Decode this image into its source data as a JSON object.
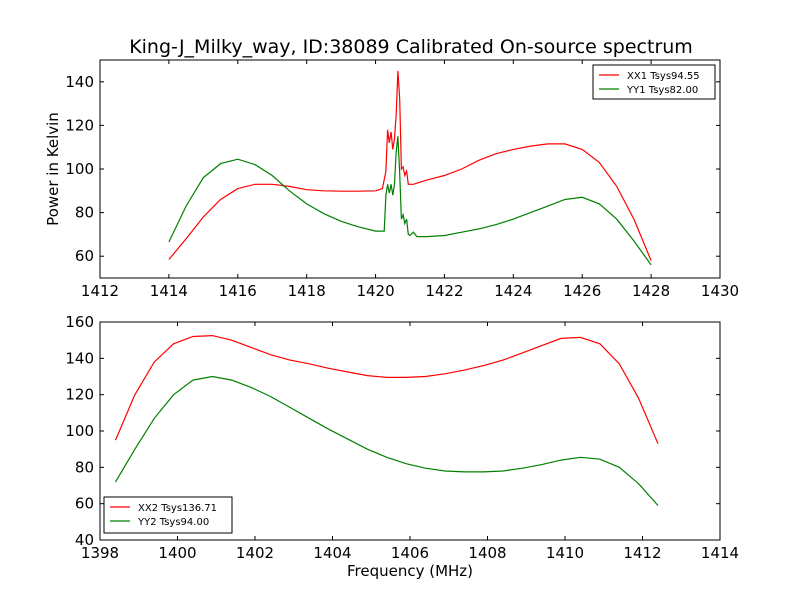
{
  "title": "King-J_Milky_way, ID:38089 Calibrated On-source spectrum",
  "chart_data": [
    {
      "type": "line",
      "xlabel": "",
      "ylabel": "Power in Kelvin",
      "xlim": [
        1412,
        1430
      ],
      "ylim": [
        50,
        150
      ],
      "xticks": [
        1412,
        1414,
        1416,
        1418,
        1420,
        1422,
        1424,
        1426,
        1428,
        1430
      ],
      "yticks": [
        60,
        80,
        100,
        120,
        140
      ],
      "legend_position": "top-right",
      "series": [
        {
          "name": "XX1 Tsys94.55",
          "color": "#ff0000",
          "points": [
            [
              1414.0,
              58.5
            ],
            [
              1414.5,
              68
            ],
            [
              1415.0,
              78
            ],
            [
              1415.5,
              86
            ],
            [
              1416.0,
              91
            ],
            [
              1416.5,
              93
            ],
            [
              1417.0,
              93
            ],
            [
              1417.5,
              92
            ],
            [
              1418.0,
              90.5
            ],
            [
              1418.5,
              90
            ],
            [
              1419.0,
              89.8
            ],
            [
              1419.5,
              89.8
            ],
            [
              1420.0,
              90
            ],
            [
              1420.2,
              91
            ],
            [
              1420.3,
              99
            ],
            [
              1420.35,
              118
            ],
            [
              1420.4,
              112
            ],
            [
              1420.45,
              117
            ],
            [
              1420.5,
              109
            ],
            [
              1420.55,
              114
            ],
            [
              1420.6,
              125
            ],
            [
              1420.65,
              145
            ],
            [
              1420.7,
              132
            ],
            [
              1420.75,
              100
            ],
            [
              1420.8,
              101
            ],
            [
              1420.85,
              97
            ],
            [
              1420.9,
              99
            ],
            [
              1420.95,
              93
            ],
            [
              1421.1,
              93
            ],
            [
              1421.3,
              94
            ],
            [
              1421.5,
              95
            ],
            [
              1422.0,
              97
            ],
            [
              1422.5,
              100
            ],
            [
              1423.0,
              104
            ],
            [
              1423.5,
              107
            ],
            [
              1424.0,
              109
            ],
            [
              1424.5,
              110.5
            ],
            [
              1425.0,
              111.5
            ],
            [
              1425.5,
              111.5
            ],
            [
              1426.0,
              109
            ],
            [
              1426.5,
              103
            ],
            [
              1427.0,
              92
            ],
            [
              1427.5,
              77
            ],
            [
              1428.0,
              58
            ]
          ]
        },
        {
          "name": "YY1 Tsys82.00",
          "color": "#008000",
          "points": [
            [
              1414.0,
              66.5
            ],
            [
              1414.5,
              83
            ],
            [
              1415.0,
              96
            ],
            [
              1415.5,
              102.5
            ],
            [
              1416.0,
              104.5
            ],
            [
              1416.5,
              102
            ],
            [
              1417.0,
              97
            ],
            [
              1417.5,
              90
            ],
            [
              1418.0,
              84
            ],
            [
              1418.5,
              79.5
            ],
            [
              1419.0,
              76
            ],
            [
              1419.5,
              73.5
            ],
            [
              1420.0,
              71.5
            ],
            [
              1420.25,
              71.5
            ],
            [
              1420.3,
              88
            ],
            [
              1420.35,
              93
            ],
            [
              1420.4,
              89
            ],
            [
              1420.45,
              93
            ],
            [
              1420.5,
              88
            ],
            [
              1420.55,
              93
            ],
            [
              1420.6,
              108
            ],
            [
              1420.65,
              115
            ],
            [
              1420.7,
              98
            ],
            [
              1420.75,
              77
            ],
            [
              1420.8,
              79
            ],
            [
              1420.85,
              75
            ],
            [
              1420.9,
              77
            ],
            [
              1420.95,
              70
            ],
            [
              1421.0,
              69.5
            ],
            [
              1421.1,
              71
            ],
            [
              1421.2,
              69
            ],
            [
              1421.5,
              69
            ],
            [
              1422.0,
              69.5
            ],
            [
              1422.5,
              71
            ],
            [
              1423.0,
              72.5
            ],
            [
              1423.5,
              74.5
            ],
            [
              1424.0,
              77
            ],
            [
              1424.5,
              80
            ],
            [
              1425.0,
              83
            ],
            [
              1425.5,
              86
            ],
            [
              1426.0,
              87
            ],
            [
              1426.5,
              84
            ],
            [
              1427.0,
              77
            ],
            [
              1427.5,
              67
            ],
            [
              1428.0,
              56
            ]
          ]
        }
      ]
    },
    {
      "type": "line",
      "xlabel": "Frequency (MHz)",
      "ylabel": "",
      "xlim": [
        1398,
        1414
      ],
      "ylim": [
        40,
        160
      ],
      "xticks": [
        1398,
        1400,
        1402,
        1404,
        1406,
        1408,
        1410,
        1412,
        1414
      ],
      "yticks": [
        40,
        60,
        80,
        100,
        120,
        140,
        160
      ],
      "legend_position": "bottom-left",
      "series": [
        {
          "name": "XX2 Tsys136.71",
          "color": "#ff0000",
          "points": [
            [
              1398.4,
              95
            ],
            [
              1398.9,
              120
            ],
            [
              1399.4,
              138
            ],
            [
              1399.9,
              148
            ],
            [
              1400.4,
              152
            ],
            [
              1400.9,
              152.5
            ],
            [
              1401.4,
              150
            ],
            [
              1401.9,
              146
            ],
            [
              1402.4,
              142
            ],
            [
              1402.9,
              139
            ],
            [
              1403.4,
              137
            ],
            [
              1403.9,
              134.5
            ],
            [
              1404.4,
              132.5
            ],
            [
              1404.9,
              130.5
            ],
            [
              1405.4,
              129.5
            ],
            [
              1405.9,
              129.5
            ],
            [
              1406.4,
              130
            ],
            [
              1406.9,
              131.5
            ],
            [
              1407.4,
              133.5
            ],
            [
              1407.9,
              136
            ],
            [
              1408.4,
              139
            ],
            [
              1408.9,
              143
            ],
            [
              1409.4,
              147
            ],
            [
              1409.9,
              151
            ],
            [
              1410.4,
              151.5
            ],
            [
              1410.9,
              148
            ],
            [
              1411.4,
              137
            ],
            [
              1411.9,
              118
            ],
            [
              1412.4,
              93
            ]
          ]
        },
        {
          "name": "YY2 Tsys94.00",
          "color": "#008000",
          "points": [
            [
              1398.4,
              72
            ],
            [
              1398.9,
              90
            ],
            [
              1399.4,
              107
            ],
            [
              1399.9,
              120
            ],
            [
              1400.4,
              128
            ],
            [
              1400.9,
              130
            ],
            [
              1401.4,
              128
            ],
            [
              1401.9,
              124
            ],
            [
              1402.4,
              119
            ],
            [
              1402.9,
              113
            ],
            [
              1403.4,
              107
            ],
            [
              1403.9,
              101
            ],
            [
              1404.4,
              95.5
            ],
            [
              1404.9,
              90
            ],
            [
              1405.4,
              85.5
            ],
            [
              1405.9,
              82
            ],
            [
              1406.4,
              79.5
            ],
            [
              1406.9,
              78
            ],
            [
              1407.4,
              77.5
            ],
            [
              1407.9,
              77.5
            ],
            [
              1408.4,
              78
            ],
            [
              1408.9,
              79.5
            ],
            [
              1409.4,
              81.5
            ],
            [
              1409.9,
              84
            ],
            [
              1410.4,
              85.5
            ],
            [
              1410.9,
              84.5
            ],
            [
              1411.4,
              80
            ],
            [
              1411.9,
              71
            ],
            [
              1412.4,
              59
            ]
          ]
        }
      ]
    }
  ]
}
